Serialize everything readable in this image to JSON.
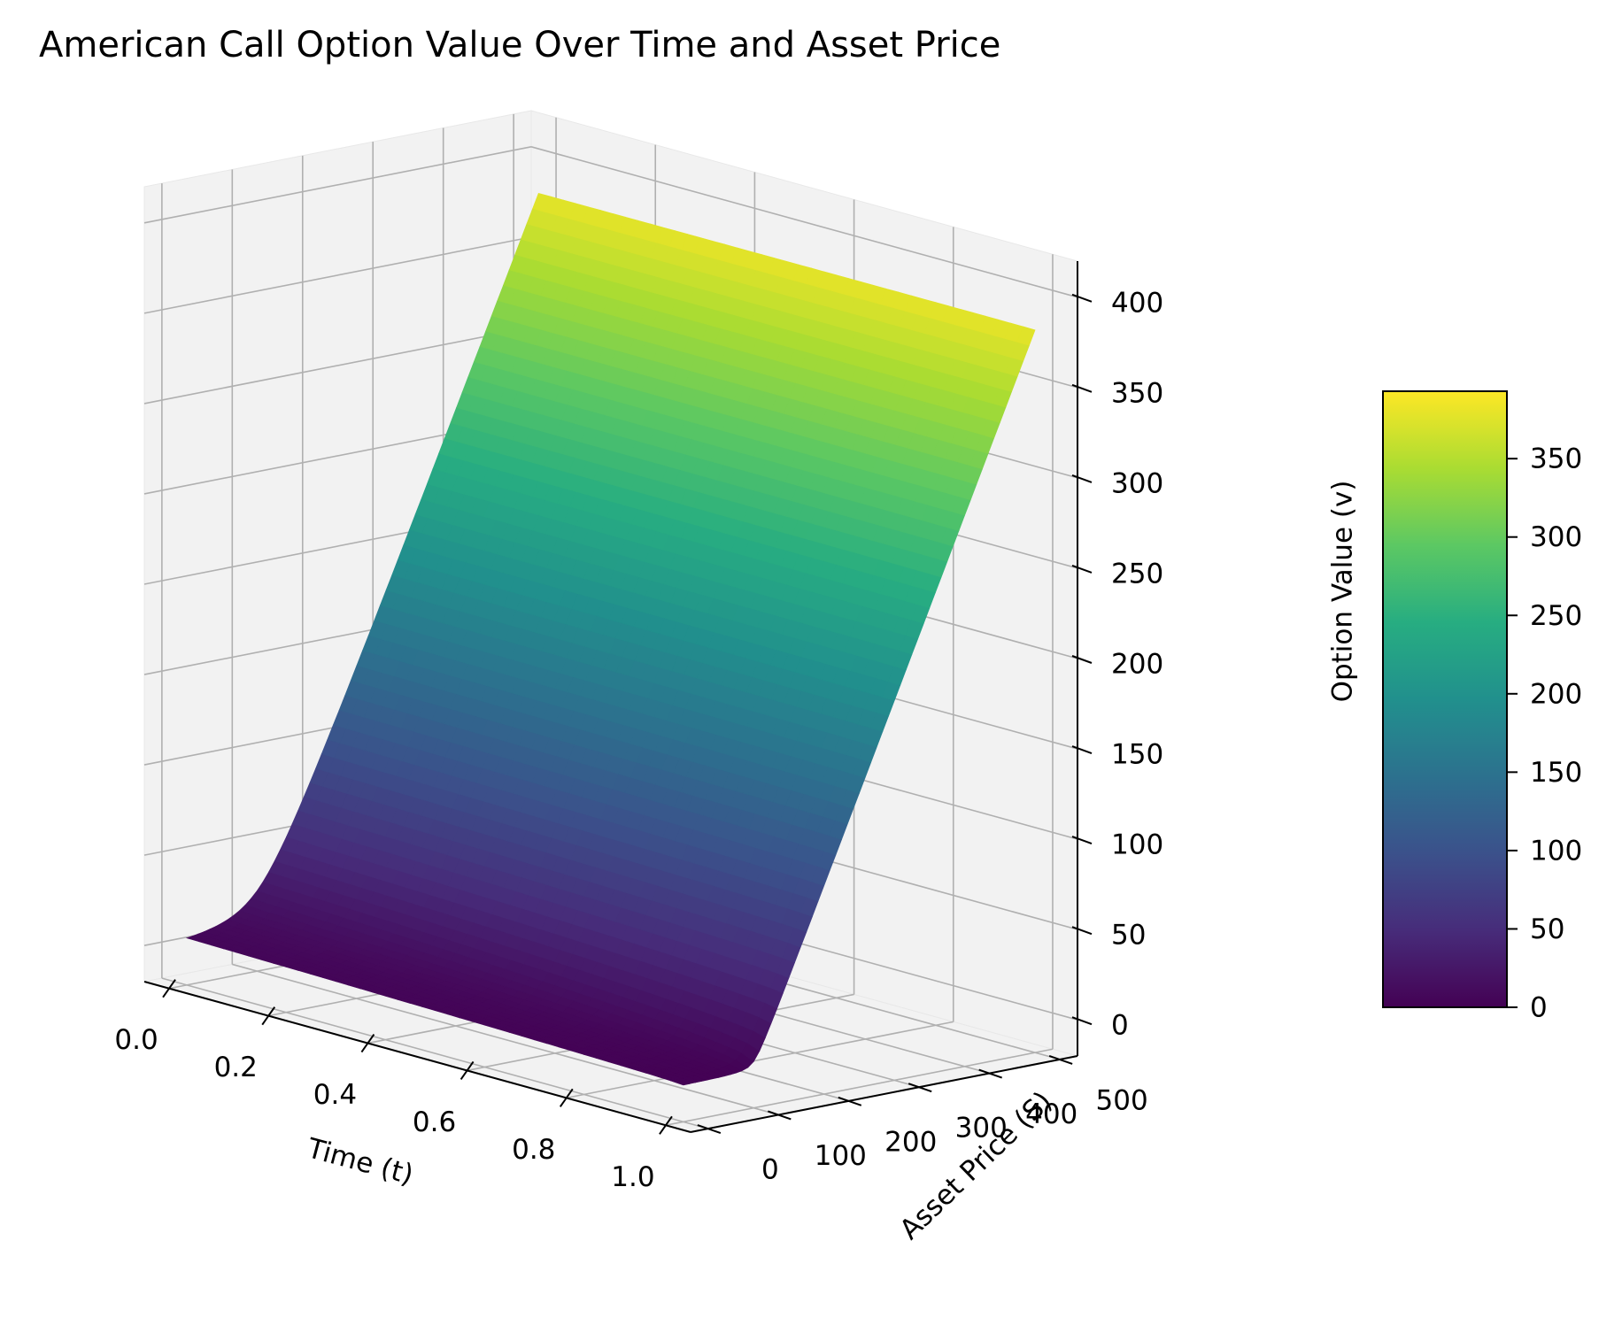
{
  "chart_data": {
    "type": "surface3d",
    "title": "American Call Option Value Over Time and Asset Price",
    "xlabel": "Time (t)",
    "ylabel": "Asset Price (S)",
    "zlabel": "Option Value (v)",
    "xlim": [
      -0.05,
      1.05
    ],
    "ylim": [
      -25,
      525
    ],
    "zlim": [
      -20,
      420
    ],
    "x_ticks": [
      "0.0",
      "0.2",
      "0.4",
      "0.6",
      "0.8",
      "1.0"
    ],
    "y_ticks": [
      "0",
      "100",
      "200",
      "300",
      "400",
      "500"
    ],
    "z_ticks": [
      "0",
      "50",
      "100",
      "150",
      "200",
      "250",
      "300",
      "350",
      "400"
    ],
    "grid": true,
    "colormap": "viridis",
    "strike": 100,
    "t_range": [
      0,
      1
    ],
    "s_range": [
      0,
      500
    ],
    "v_range": [
      0,
      400
    ],
    "colorbar": {
      "range": [
        0,
        393
      ],
      "ticks": [
        "0",
        "50",
        "100",
        "150",
        "200",
        "250",
        "300",
        "350"
      ],
      "location": "right"
    }
  }
}
